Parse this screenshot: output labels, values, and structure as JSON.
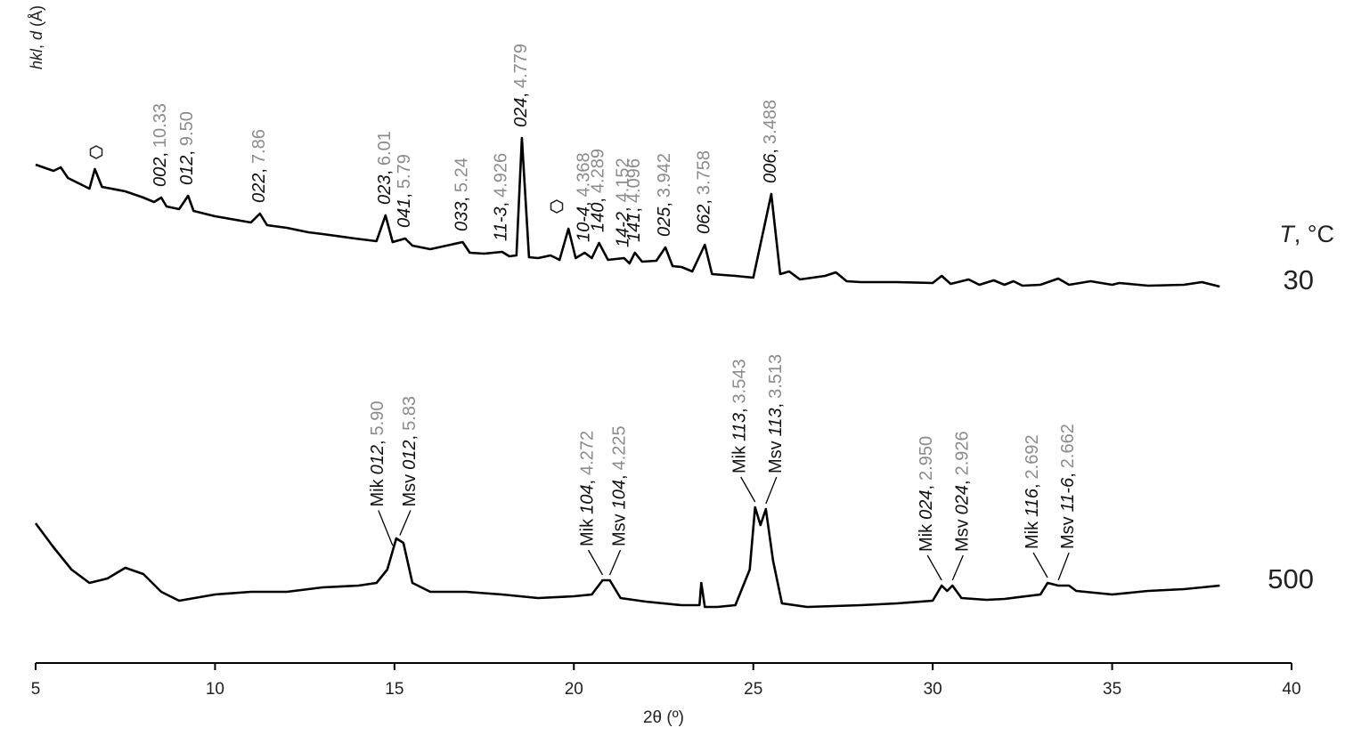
{
  "chart_data": {
    "type": "line",
    "x_label": "2θ (º)",
    "y_label_parts": [
      "hkl",
      ",",
      "d",
      "(Å)"
    ],
    "legend_title": {
      "symbol": "T",
      "unit": ", °C"
    },
    "separator": ",",
    "xlim": [
      5,
      40
    ],
    "xticks": [
      5,
      10,
      15,
      20,
      25,
      30,
      35,
      40
    ],
    "ylim": [
      0,
      600
    ],
    "label_color": "#8c8c8c",
    "series": [
      {
        "name": "30",
        "color": "#000000",
        "x": [
          5,
          5.5,
          5.7,
          5.9,
          6.3,
          6.5,
          6.65,
          6.85,
          7.5,
          8,
          8.3,
          8.5,
          8.65,
          9,
          9.25,
          9.4,
          10,
          11,
          11.25,
          11.45,
          12,
          12.6,
          13,
          13.9,
          14.5,
          14.75,
          14.95,
          15.3,
          15.5,
          16,
          16.9,
          17.1,
          17.5,
          18,
          18.2,
          18.4,
          18.55,
          18.75,
          19,
          19.35,
          19.6,
          19.85,
          20.05,
          20.3,
          20.5,
          20.7,
          20.95,
          21.4,
          21.55,
          21.7,
          21.9,
          22.3,
          22.55,
          22.75,
          23,
          23.3,
          23.65,
          23.85,
          24.5,
          25,
          25.5,
          25.75,
          26,
          26.3,
          27,
          27.3,
          27.6,
          28,
          29,
          30,
          30.25,
          30.5,
          31,
          31.3,
          31.7,
          32,
          32.25,
          32.5,
          33,
          33.5,
          33.8,
          34.4,
          35,
          35.2,
          36,
          37,
          37.5,
          38
        ],
        "values": [
          560,
          553,
          557,
          545,
          537,
          533,
          555,
          535,
          530,
          523,
          518,
          523,
          513,
          510,
          525,
          508,
          502,
          495,
          505,
          492,
          489,
          484,
          482,
          477,
          474,
          503,
          473,
          477,
          469,
          465,
          473,
          461,
          460,
          462,
          457,
          458,
          590,
          456,
          455,
          458,
          453,
          488,
          455,
          461,
          455,
          472,
          453,
          455,
          449,
          461,
          451,
          452,
          467,
          446,
          445,
          440,
          470,
          437,
          435,
          433,
          527,
          437,
          440,
          431,
          435,
          439,
          429,
          428,
          428,
          427,
          435,
          426,
          431,
          425,
          430,
          425,
          429,
          424,
          425,
          432,
          425,
          429,
          425,
          427,
          424,
          425,
          428,
          423
        ],
        "annotations": [
          {
            "x": 8.5,
            "hkl": "002",
            "d": "10.33"
          },
          {
            "x": 9.25,
            "hkl": "012",
            "d": "9.50"
          },
          {
            "x": 11.25,
            "hkl": "022",
            "d": "7.86"
          },
          {
            "x": 14.75,
            "hkl": "023",
            "d": "6.01"
          },
          {
            "x": 15.3,
            "hkl": "041",
            "d": "5.79"
          },
          {
            "x": 16.9,
            "hkl": "033",
            "d": "5.24"
          },
          {
            "x": 18.0,
            "hkl": "11-3",
            "d": "4.926"
          },
          {
            "x": 18.55,
            "hkl": "024",
            "d": "4.779"
          },
          {
            "x": 20.3,
            "hkl": "10-4",
            "d": "4.368"
          },
          {
            "x": 20.7,
            "hkl": "140",
            "d": "4.289"
          },
          {
            "x": 21.4,
            "hkl": "14-2",
            "d": "4.152"
          },
          {
            "x": 21.7,
            "hkl": "141",
            "d": "4.096"
          },
          {
            "x": 22.55,
            "hkl": "025",
            "d": "3.942"
          },
          {
            "x": 23.65,
            "hkl": "062",
            "d": "3.758"
          },
          {
            "x": 25.5,
            "hkl": "006",
            "d": "3.488"
          }
        ]
      },
      {
        "name": "500",
        "color": "#000000",
        "x": [
          5,
          5.5,
          6,
          6.5,
          7,
          7.5,
          8,
          8.5,
          9,
          10,
          11,
          12,
          13,
          14,
          14.5,
          14.8,
          15.05,
          15.25,
          15.5,
          16,
          17,
          18,
          19,
          20,
          20.5,
          20.8,
          21,
          21.3,
          22,
          23,
          23.5,
          23.55,
          23.65,
          24,
          24.5,
          24.9,
          25.05,
          25.2,
          25.35,
          25.55,
          25.8,
          26.5,
          28,
          29,
          30,
          30.25,
          30.4,
          30.55,
          30.8,
          31.5,
          32,
          33,
          33.2,
          33.5,
          33.8,
          34,
          35,
          36,
          37,
          38
        ],
        "values": [
          157,
          130,
          105,
          90,
          95,
          107,
          100,
          80,
          70,
          77,
          80,
          80,
          85,
          87,
          90,
          105,
          140,
          135,
          90,
          80,
          80,
          77,
          73,
          75,
          77,
          93,
          93,
          73,
          69,
          65,
          65,
          90,
          63,
          63,
          65,
          105,
          175,
          155,
          173,
          115,
          67,
          63,
          65,
          67,
          70,
          87,
          81,
          87,
          73,
          71,
          72,
          77,
          90,
          87,
          87,
          81,
          77,
          81,
          83,
          87
        ],
        "annotations": [
          {
            "x": 14.95,
            "phase": "Mik",
            "hkl": "012",
            "d": "5.90"
          },
          {
            "x": 15.15,
            "phase": "Msv",
            "hkl": "012",
            "d": "5.83"
          },
          {
            "x": 20.8,
            "phase": "Mik",
            "hkl": "104",
            "d": "4.272"
          },
          {
            "x": 21.0,
            "phase": "Msv",
            "hkl": "104",
            "d": "4.225"
          },
          {
            "x": 25.05,
            "phase": "Mik",
            "hkl": "113",
            "d": "3.543"
          },
          {
            "x": 25.35,
            "phase": "Msv",
            "hkl": "113",
            "d": "3.513"
          },
          {
            "x": 30.25,
            "phase": "Mik",
            "hkl": "024",
            "d": "2.950"
          },
          {
            "x": 30.55,
            "phase": "Msv",
            "hkl": "024",
            "d": "2.926"
          },
          {
            "x": 33.2,
            "phase": "Mik",
            "hkl": "116",
            "d": "2.692"
          },
          {
            "x": 33.5,
            "phase": "Msv",
            "hkl": "11-6",
            "d": "2.662"
          }
        ]
      }
    ]
  }
}
